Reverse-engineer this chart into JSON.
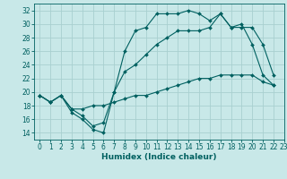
{
  "xlabel": "Humidex (Indice chaleur)",
  "bg_color": "#c8e8e8",
  "grid_color": "#a8d0d0",
  "line_color": "#006060",
  "xlim": [
    -0.5,
    23
  ],
  "ylim": [
    13,
    33
  ],
  "xticks": [
    0,
    1,
    2,
    3,
    4,
    5,
    6,
    7,
    8,
    9,
    10,
    11,
    12,
    13,
    14,
    15,
    16,
    17,
    18,
    19,
    20,
    21,
    22,
    23
  ],
  "yticks": [
    14,
    16,
    18,
    20,
    22,
    24,
    26,
    28,
    30,
    32
  ],
  "curve1_x": [
    0,
    1,
    2,
    3,
    4,
    5,
    6,
    7,
    8,
    9,
    10,
    11,
    12,
    13,
    14,
    15,
    16,
    17,
    18,
    19,
    20,
    21,
    22
  ],
  "curve1_y": [
    19.5,
    18.5,
    19.5,
    17.0,
    16.0,
    14.5,
    14.0,
    20.0,
    26.0,
    29.0,
    29.5,
    31.5,
    31.5,
    31.5,
    32.0,
    31.5,
    30.5,
    31.5,
    29.5,
    30.0,
    27.0,
    22.5,
    21.0
  ],
  "curve2_x": [
    0,
    1,
    2,
    3,
    4,
    5,
    6,
    7,
    8,
    9,
    10,
    11,
    12,
    13,
    14,
    15,
    16,
    17,
    18,
    19,
    20,
    21,
    22
  ],
  "curve2_y": [
    19.5,
    18.5,
    19.5,
    17.5,
    16.5,
    15.0,
    15.5,
    20.0,
    23.0,
    24.0,
    25.5,
    27.0,
    28.0,
    29.0,
    29.0,
    29.0,
    29.5,
    31.5,
    29.5,
    29.5,
    29.5,
    27.0,
    22.5
  ],
  "curve3_x": [
    0,
    1,
    2,
    3,
    4,
    5,
    6,
    7,
    8,
    9,
    10,
    11,
    12,
    13,
    14,
    15,
    16,
    17,
    18,
    19,
    20,
    21,
    22
  ],
  "curve3_y": [
    19.5,
    18.5,
    19.5,
    17.5,
    17.5,
    18.0,
    18.0,
    18.5,
    19.0,
    19.5,
    19.5,
    20.0,
    20.5,
    21.0,
    21.5,
    22.0,
    22.0,
    22.5,
    22.5,
    22.5,
    22.5,
    21.5,
    21.0
  ],
  "tick_fontsize": 5.5,
  "xlabel_fontsize": 6.5,
  "marker_size": 2.0,
  "line_width": 0.8
}
